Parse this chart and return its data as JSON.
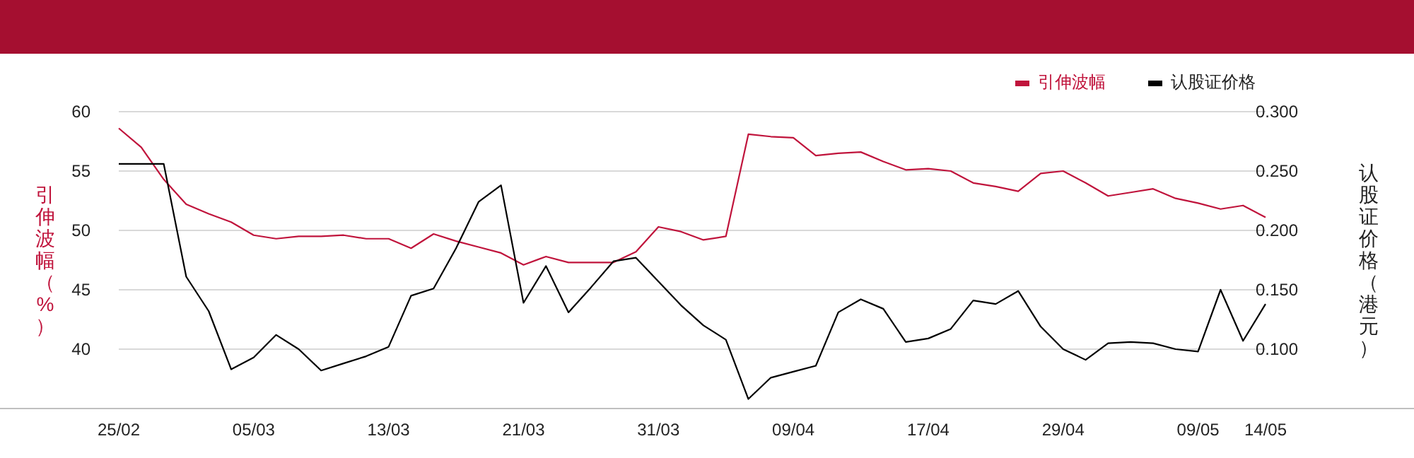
{
  "chart_data": {
    "type": "line",
    "categories": [
      "25/02",
      null,
      null,
      null,
      null,
      null,
      "05/03",
      null,
      null,
      null,
      null,
      null,
      "13/03",
      null,
      null,
      null,
      null,
      null,
      "21/03",
      null,
      null,
      null,
      null,
      null,
      "31/03",
      null,
      null,
      null,
      null,
      null,
      "09/04",
      null,
      null,
      null,
      null,
      null,
      "17/04",
      null,
      null,
      null,
      null,
      null,
      "29/04",
      null,
      null,
      null,
      null,
      null,
      "09/05",
      null,
      null,
      "14/05"
    ],
    "series": [
      {
        "name": "引伸波幅",
        "color": "#c0143c",
        "values": [
          58.6,
          57.0,
          54.3,
          52.2,
          51.4,
          50.7,
          49.6,
          49.3,
          49.5,
          49.5,
          49.6,
          49.3,
          49.3,
          48.5,
          49.7,
          49.1,
          48.6,
          48.1,
          47.1,
          47.8,
          47.3,
          47.3,
          47.3,
          48.2,
          50.3,
          49.9,
          49.2,
          49.5,
          58.1,
          57.9,
          57.8,
          56.3,
          56.5,
          56.6,
          55.8,
          55.1,
          55.2,
          55.0,
          54.0,
          53.7,
          53.3,
          54.8,
          55.0,
          54.0,
          52.9,
          53.2,
          53.5,
          52.7,
          52.3,
          51.8,
          52.1,
          51.1
        ]
      },
      {
        "name": "认股证价格",
        "color": "#000000",
        "axis": "y2",
        "values": [
          0.256,
          0.256,
          0.256,
          0.161,
          0.132,
          0.083,
          0.093,
          0.112,
          0.1,
          0.082,
          0.088,
          0.094,
          0.102,
          0.145,
          0.151,
          0.185,
          0.224,
          0.238,
          0.139,
          0.17,
          0.131,
          0.152,
          0.174,
          0.177,
          0.157,
          0.137,
          0.12,
          0.108,
          0.058,
          0.076,
          0.081,
          0.086,
          0.131,
          0.142,
          0.134,
          0.106,
          0.109,
          0.117,
          0.141,
          0.138,
          0.149,
          0.119,
          0.1,
          0.091,
          0.105,
          0.106,
          0.105,
          0.1,
          0.098,
          0.15,
          0.107,
          0.138
        ]
      }
    ],
    "ylabel": "引伸波幅（%）",
    "y2label": "认股证价格（港元）",
    "ylim": [
      35,
      60
    ],
    "yticks": [
      40,
      45,
      50,
      55,
      60
    ],
    "y2lim": [
      0.05,
      0.3
    ],
    "y2ticks": [
      {
        "value": 0.1,
        "label": "0.100"
      },
      {
        "value": 0.15,
        "label": "0.150"
      },
      {
        "value": 0.2,
        "label": "0.200"
      },
      {
        "value": 0.25,
        "label": "0.250"
      },
      {
        "value": 0.3,
        "label": "0.300"
      }
    ],
    "grid": "y",
    "legend": "top right",
    "marker": "none",
    "line_style": "solid"
  }
}
